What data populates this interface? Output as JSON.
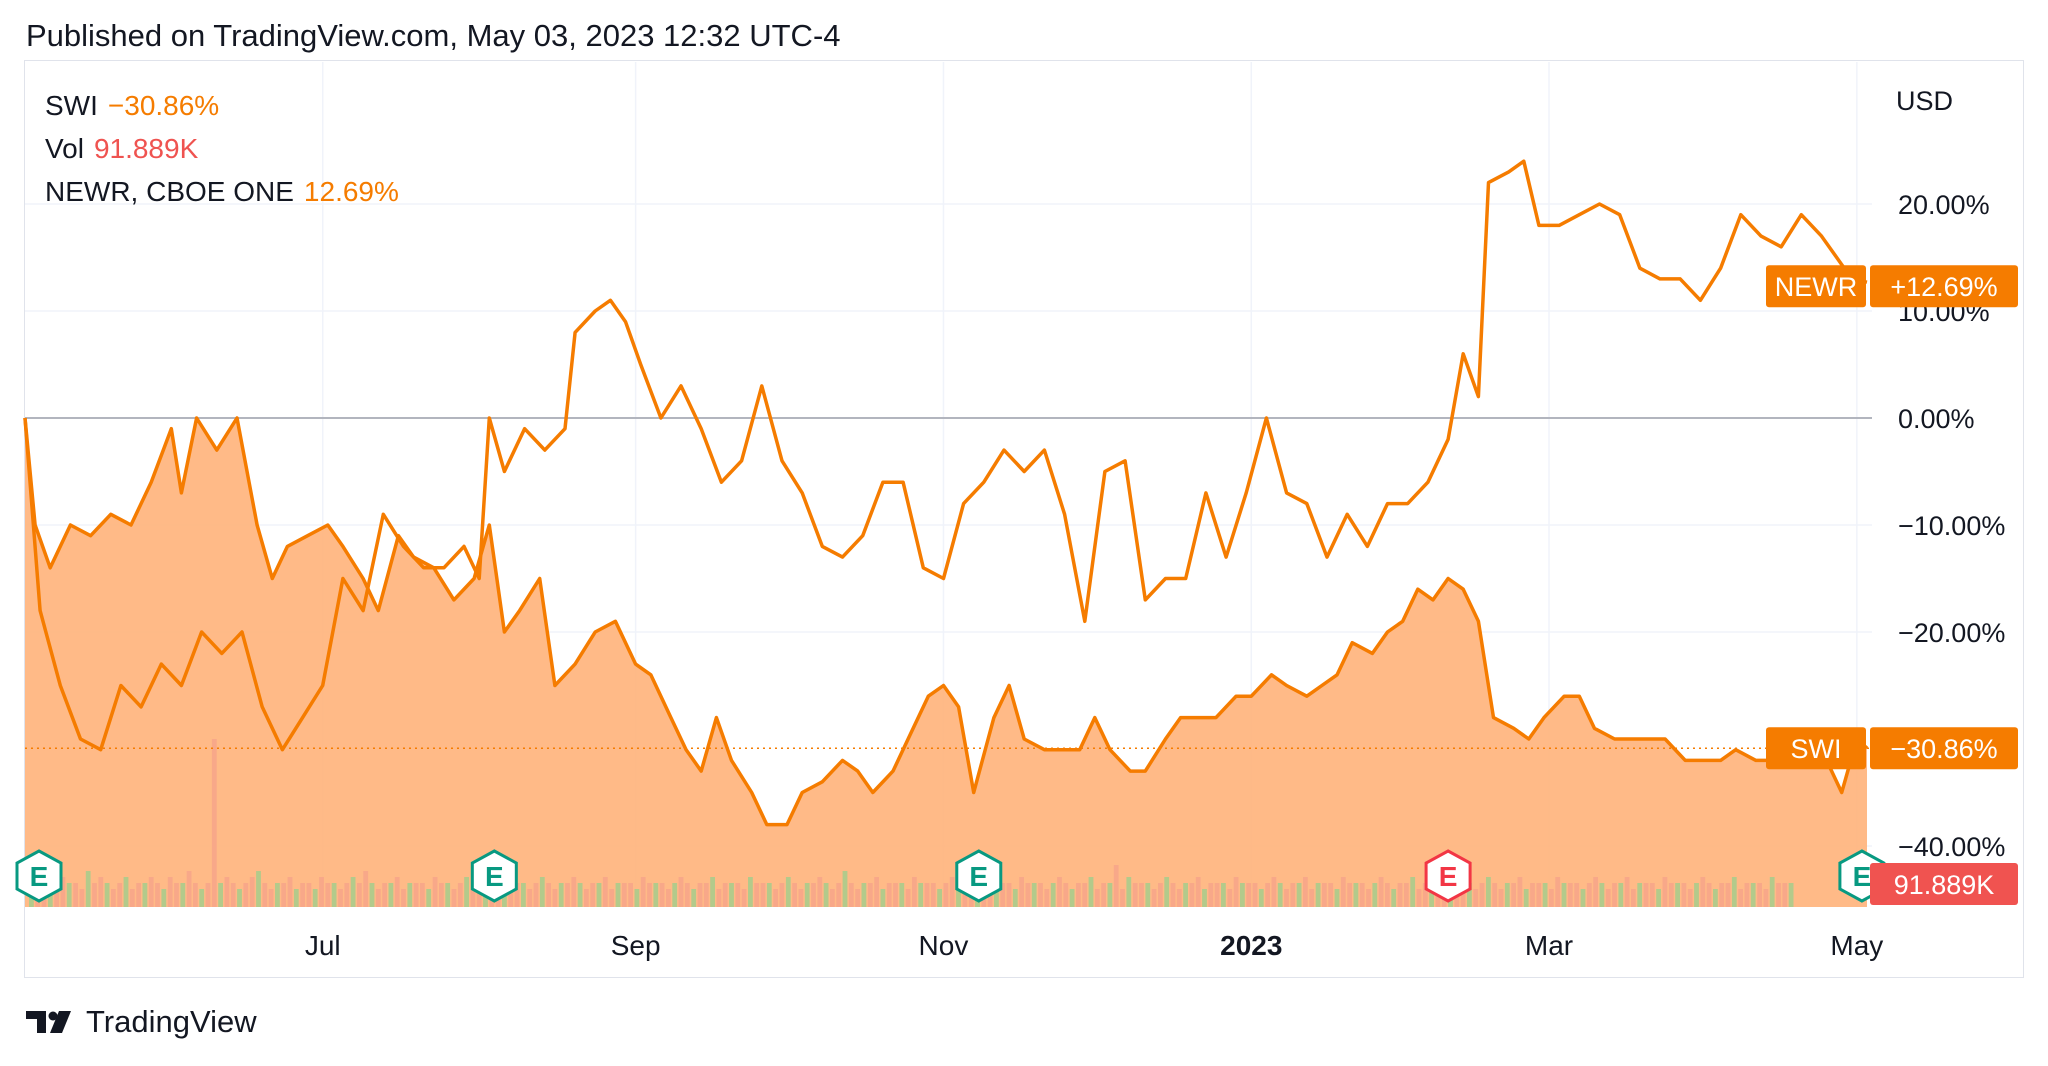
{
  "header": {
    "published": "Published on TradingView.com, May 03, 2023 12:32 UTC-4"
  },
  "legend": [
    {
      "label": "SWI",
      "value": "−30.86%",
      "color": "#f57c00"
    },
    {
      "label": "Vol",
      "value": "91.889K",
      "color": "#ef5350"
    },
    {
      "label": "NEWR, CBOE ONE",
      "value": "12.69%",
      "color": "#f57c00"
    }
  ],
  "axis_badges": {
    "newr": {
      "label": "NEWR",
      "value": "+12.69%"
    },
    "swi": {
      "label": "SWI",
      "value": "−30.86%"
    },
    "vol": {
      "value": "91.889K"
    }
  },
  "footer": {
    "brand": "TradingView"
  },
  "colors": {
    "line": "#f57c00",
    "area": "#ffb27a",
    "zero": "#b2b5be",
    "grid": "#f0f3fa",
    "vol_badge": "#f05350",
    "earn": "#089981",
    "earn_red": "#f23645"
  },
  "chart_data": {
    "type": "line",
    "title": "",
    "y_unit": "USD",
    "ylim": [
      -45,
      30
    ],
    "yticks": [
      20,
      10,
      0,
      -10,
      -20,
      -40
    ],
    "ytick_labels": [
      "20.00%",
      "10.00%",
      "0.00%",
      "−10.00%",
      "−20.00%",
      "−40.00%"
    ],
    "xlim": [
      "2022-05-03",
      "2023-05-04"
    ],
    "xticks": [
      {
        "date": "2022-07-01",
        "label": "Jul",
        "bold": false
      },
      {
        "date": "2022-09-01",
        "label": "Sep",
        "bold": false
      },
      {
        "date": "2022-11-01",
        "label": "Nov",
        "bold": false
      },
      {
        "date": "2023-01-01",
        "label": "2023",
        "bold": true
      },
      {
        "date": "2023-03-01",
        "label": "Mar",
        "bold": false
      },
      {
        "date": "2023-05-01",
        "label": "May",
        "bold": false
      }
    ],
    "grid": true,
    "earnings": [
      {
        "date": "2022-05-04",
        "label": "E",
        "kind": "green"
      },
      {
        "date": "2022-08-04",
        "label": "E",
        "kind": "green"
      },
      {
        "date": "2022-11-08",
        "label": "E",
        "kind": "green"
      },
      {
        "date": "2023-02-09",
        "label": "E",
        "kind": "red"
      },
      {
        "date": "2023-05-02",
        "label": "E",
        "kind": "green"
      }
    ],
    "series": [
      {
        "name": "SWI",
        "style": "area",
        "points": [
          [
            "2022-05-03",
            0
          ],
          [
            "2022-05-05",
            -10
          ],
          [
            "2022-05-08",
            -14
          ],
          [
            "2022-05-12",
            -10
          ],
          [
            "2022-05-16",
            -11
          ],
          [
            "2022-05-20",
            -9
          ],
          [
            "2022-05-24",
            -10
          ],
          [
            "2022-05-28",
            -6
          ],
          [
            "2022-06-01",
            -1
          ],
          [
            "2022-06-03",
            -7
          ],
          [
            "2022-06-06",
            0
          ],
          [
            "2022-06-10",
            -3
          ],
          [
            "2022-06-14",
            0
          ],
          [
            "2022-06-18",
            -10
          ],
          [
            "2022-06-21",
            -15
          ],
          [
            "2022-06-24",
            -12
          ],
          [
            "2022-06-28",
            -11
          ],
          [
            "2022-07-02",
            -10
          ],
          [
            "2022-07-05",
            -12
          ],
          [
            "2022-07-09",
            -15
          ],
          [
            "2022-07-12",
            -18
          ],
          [
            "2022-07-16",
            -11
          ],
          [
            "2022-07-19",
            -13
          ],
          [
            "2022-07-23",
            -14
          ],
          [
            "2022-07-27",
            -17
          ],
          [
            "2022-07-31",
            -15
          ],
          [
            "2022-08-03",
            -10
          ],
          [
            "2022-08-06",
            -20
          ],
          [
            "2022-08-09",
            -18
          ],
          [
            "2022-08-13",
            -15
          ],
          [
            "2022-08-16",
            -25
          ],
          [
            "2022-08-20",
            -23
          ],
          [
            "2022-08-24",
            -20
          ],
          [
            "2022-08-28",
            -19
          ],
          [
            "2022-09-01",
            -23
          ],
          [
            "2022-09-04",
            -24
          ],
          [
            "2022-09-08",
            -28
          ],
          [
            "2022-09-11",
            -31
          ],
          [
            "2022-09-14",
            -33
          ],
          [
            "2022-09-17",
            -28
          ],
          [
            "2022-09-20",
            -32
          ],
          [
            "2022-09-24",
            -35
          ],
          [
            "2022-09-27",
            -38
          ],
          [
            "2022-10-01",
            -38
          ],
          [
            "2022-10-04",
            -35
          ],
          [
            "2022-10-08",
            -34
          ],
          [
            "2022-10-12",
            -32
          ],
          [
            "2022-10-15",
            -33
          ],
          [
            "2022-10-18",
            -35
          ],
          [
            "2022-10-22",
            -33
          ],
          [
            "2022-10-25",
            -30
          ],
          [
            "2022-10-29",
            -26
          ],
          [
            "2022-11-01",
            -25
          ],
          [
            "2022-11-04",
            -27
          ],
          [
            "2022-11-07",
            -35
          ],
          [
            "2022-11-11",
            -28
          ],
          [
            "2022-11-14",
            -25
          ],
          [
            "2022-11-17",
            -30
          ],
          [
            "2022-11-21",
            -31
          ],
          [
            "2022-11-24",
            -31
          ],
          [
            "2022-11-28",
            -31
          ],
          [
            "2022-12-01",
            -28
          ],
          [
            "2022-12-04",
            -31
          ],
          [
            "2022-12-08",
            -33
          ],
          [
            "2022-12-11",
            -33
          ],
          [
            "2022-12-15",
            -30
          ],
          [
            "2022-12-18",
            -28
          ],
          [
            "2022-12-22",
            -28
          ],
          [
            "2022-12-25",
            -28
          ],
          [
            "2022-12-29",
            -26
          ],
          [
            "2023-01-01",
            -26
          ],
          [
            "2023-01-05",
            -24
          ],
          [
            "2023-01-08",
            -25
          ],
          [
            "2023-01-12",
            -26
          ],
          [
            "2023-01-15",
            -25
          ],
          [
            "2023-01-18",
            -24
          ],
          [
            "2023-01-21",
            -21
          ],
          [
            "2023-01-25",
            -22
          ],
          [
            "2023-01-28",
            -20
          ],
          [
            "2023-01-31",
            -19
          ],
          [
            "2023-02-03",
            -16
          ],
          [
            "2023-02-06",
            -17
          ],
          [
            "2023-02-09",
            -15
          ],
          [
            "2023-02-12",
            -16
          ],
          [
            "2023-02-15",
            -19
          ],
          [
            "2023-02-18",
            -28
          ],
          [
            "2023-02-22",
            -29
          ],
          [
            "2023-02-25",
            -30
          ],
          [
            "2023-02-28",
            -28
          ],
          [
            "2023-03-04",
            -26
          ],
          [
            "2023-03-07",
            -26
          ],
          [
            "2023-03-10",
            -29
          ],
          [
            "2023-03-14",
            -30
          ],
          [
            "2023-03-17",
            -30
          ],
          [
            "2023-03-21",
            -30
          ],
          [
            "2023-03-24",
            -30
          ],
          [
            "2023-03-28",
            -32
          ],
          [
            "2023-03-31",
            -32
          ],
          [
            "2023-04-04",
            -32
          ],
          [
            "2023-04-07",
            -31
          ],
          [
            "2023-04-11",
            -32
          ],
          [
            "2023-04-14",
            -32
          ],
          [
            "2023-04-18",
            -31
          ],
          [
            "2023-04-21",
            -31
          ],
          [
            "2023-04-25",
            -32
          ],
          [
            "2023-04-28",
            -35
          ],
          [
            "2023-05-01",
            -30
          ],
          [
            "2023-05-03",
            -30.86
          ]
        ]
      },
      {
        "name": "NEWR",
        "style": "line",
        "points": [
          [
            "2022-05-03",
            0
          ],
          [
            "2022-05-06",
            -18
          ],
          [
            "2022-05-10",
            -25
          ],
          [
            "2022-05-14",
            -30
          ],
          [
            "2022-05-18",
            -31
          ],
          [
            "2022-05-22",
            -25
          ],
          [
            "2022-05-26",
            -27
          ],
          [
            "2022-05-30",
            -23
          ],
          [
            "2022-06-03",
            -25
          ],
          [
            "2022-06-07",
            -20
          ],
          [
            "2022-06-11",
            -22
          ],
          [
            "2022-06-15",
            -20
          ],
          [
            "2022-06-19",
            -27
          ],
          [
            "2022-06-23",
            -31
          ],
          [
            "2022-06-27",
            -28
          ],
          [
            "2022-07-01",
            -25
          ],
          [
            "2022-07-05",
            -15
          ],
          [
            "2022-07-09",
            -18
          ],
          [
            "2022-07-13",
            -9
          ],
          [
            "2022-07-17",
            -12
          ],
          [
            "2022-07-21",
            -14
          ],
          [
            "2022-07-25",
            -14
          ],
          [
            "2022-07-29",
            -12
          ],
          [
            "2022-08-01",
            -15
          ],
          [
            "2022-08-03",
            0
          ],
          [
            "2022-08-06",
            -5
          ],
          [
            "2022-08-10",
            -1
          ],
          [
            "2022-08-14",
            -3
          ],
          [
            "2022-08-18",
            -1
          ],
          [
            "2022-08-20",
            8
          ],
          [
            "2022-08-24",
            10
          ],
          [
            "2022-08-27",
            11
          ],
          [
            "2022-08-30",
            9
          ],
          [
            "2022-09-02",
            5
          ],
          [
            "2022-09-06",
            0
          ],
          [
            "2022-09-10",
            3
          ],
          [
            "2022-09-14",
            -1
          ],
          [
            "2022-09-18",
            -6
          ],
          [
            "2022-09-22",
            -4
          ],
          [
            "2022-09-26",
            3
          ],
          [
            "2022-09-30",
            -4
          ],
          [
            "2022-10-04",
            -7
          ],
          [
            "2022-10-08",
            -12
          ],
          [
            "2022-10-12",
            -13
          ],
          [
            "2022-10-16",
            -11
          ],
          [
            "2022-10-20",
            -6
          ],
          [
            "2022-10-24",
            -6
          ],
          [
            "2022-10-28",
            -14
          ],
          [
            "2022-11-01",
            -15
          ],
          [
            "2022-11-05",
            -8
          ],
          [
            "2022-11-09",
            -6
          ],
          [
            "2022-11-13",
            -3
          ],
          [
            "2022-11-17",
            -5
          ],
          [
            "2022-11-21",
            -3
          ],
          [
            "2022-11-25",
            -9
          ],
          [
            "2022-11-29",
            -19
          ],
          [
            "2022-12-03",
            -5
          ],
          [
            "2022-12-07",
            -4
          ],
          [
            "2022-12-11",
            -17
          ],
          [
            "2022-12-15",
            -15
          ],
          [
            "2022-12-19",
            -15
          ],
          [
            "2022-12-23",
            -7
          ],
          [
            "2022-12-27",
            -13
          ],
          [
            "2022-12-31",
            -7
          ],
          [
            "2023-01-04",
            0
          ],
          [
            "2023-01-08",
            -7
          ],
          [
            "2023-01-12",
            -8
          ],
          [
            "2023-01-16",
            -13
          ],
          [
            "2023-01-20",
            -9
          ],
          [
            "2023-01-24",
            -12
          ],
          [
            "2023-01-28",
            -8
          ],
          [
            "2023-02-01",
            -8
          ],
          [
            "2023-02-05",
            -6
          ],
          [
            "2023-02-09",
            -2
          ],
          [
            "2023-02-12",
            6
          ],
          [
            "2023-02-15",
            2
          ],
          [
            "2023-02-17",
            22
          ],
          [
            "2023-02-21",
            23
          ],
          [
            "2023-02-24",
            24
          ],
          [
            "2023-02-27",
            18
          ],
          [
            "2023-03-03",
            18
          ],
          [
            "2023-03-07",
            19
          ],
          [
            "2023-03-11",
            20
          ],
          [
            "2023-03-15",
            19
          ],
          [
            "2023-03-19",
            14
          ],
          [
            "2023-03-23",
            13
          ],
          [
            "2023-03-27",
            13
          ],
          [
            "2023-03-31",
            11
          ],
          [
            "2023-04-04",
            14
          ],
          [
            "2023-04-08",
            19
          ],
          [
            "2023-04-12",
            17
          ],
          [
            "2023-04-16",
            16
          ],
          [
            "2023-04-20",
            19
          ],
          [
            "2023-04-24",
            17
          ],
          [
            "2023-04-27",
            15
          ],
          [
            "2023-04-30",
            13
          ],
          [
            "2023-05-03",
            12.69
          ]
        ]
      }
    ],
    "volume": [
      4,
      3,
      4,
      4,
      3,
      5,
      4,
      4,
      3,
      6,
      4,
      5,
      4,
      3,
      4,
      5,
      3,
      4,
      4,
      5,
      4,
      3,
      5,
      4,
      4,
      6,
      4,
      3,
      4,
      28,
      4,
      5,
      4,
      3,
      4,
      5,
      6,
      4,
      3,
      4,
      4,
      5,
      3,
      4,
      4,
      3,
      5,
      4,
      4,
      3,
      4,
      5,
      4,
      6,
      4,
      3,
      4,
      4,
      5,
      3,
      4,
      4,
      4,
      3,
      5,
      4,
      4,
      3,
      4,
      5,
      3,
      4,
      4,
      4,
      3,
      5,
      4,
      4,
      4,
      3,
      4,
      5,
      4,
      3,
      4,
      4,
      5,
      4,
      3,
      4,
      4,
      5,
      3,
      4,
      4,
      4,
      3,
      5,
      4,
      4,
      4,
      3,
      4,
      5,
      4,
      3,
      4,
      4,
      5,
      3,
      4,
      4,
      4,
      3,
      5,
      4,
      4,
      4,
      3,
      4,
      5,
      4,
      3,
      4,
      4,
      5,
      4,
      3,
      4,
      6,
      4,
      3,
      4,
      4,
      5,
      3,
      4,
      4,
      4,
      3,
      5,
      4,
      4,
      4,
      3,
      4,
      5,
      4,
      3,
      4,
      4,
      5,
      3,
      4,
      4,
      4,
      3,
      5,
      4,
      4,
      4,
      3,
      4,
      5,
      4,
      3,
      4,
      4,
      5,
      3,
      4,
      4,
      7,
      3,
      5,
      4,
      4,
      4,
      3,
      4,
      5,
      4,
      3,
      4,
      4,
      5,
      3,
      4,
      4,
      4,
      3,
      5,
      4,
      4,
      4,
      3,
      4,
      5,
      4,
      3,
      4,
      4,
      5,
      3,
      4,
      4,
      4,
      3,
      5,
      4,
      4,
      4,
      3,
      4,
      5,
      4,
      3,
      4,
      4,
      5,
      3,
      4,
      4,
      4,
      9,
      5,
      4,
      4,
      4,
      3,
      4,
      5,
      4,
      3,
      4,
      4,
      5,
      3,
      4,
      4,
      4,
      3,
      5,
      4,
      4,
      4,
      3,
      4,
      5,
      4,
      3,
      4,
      4,
      5,
      3,
      4,
      4,
      4,
      3,
      5,
      4,
      4,
      4,
      3,
      4,
      5,
      4,
      3,
      4,
      4,
      5,
      3,
      4,
      4,
      4,
      3,
      5,
      4,
      4,
      4
    ]
  }
}
